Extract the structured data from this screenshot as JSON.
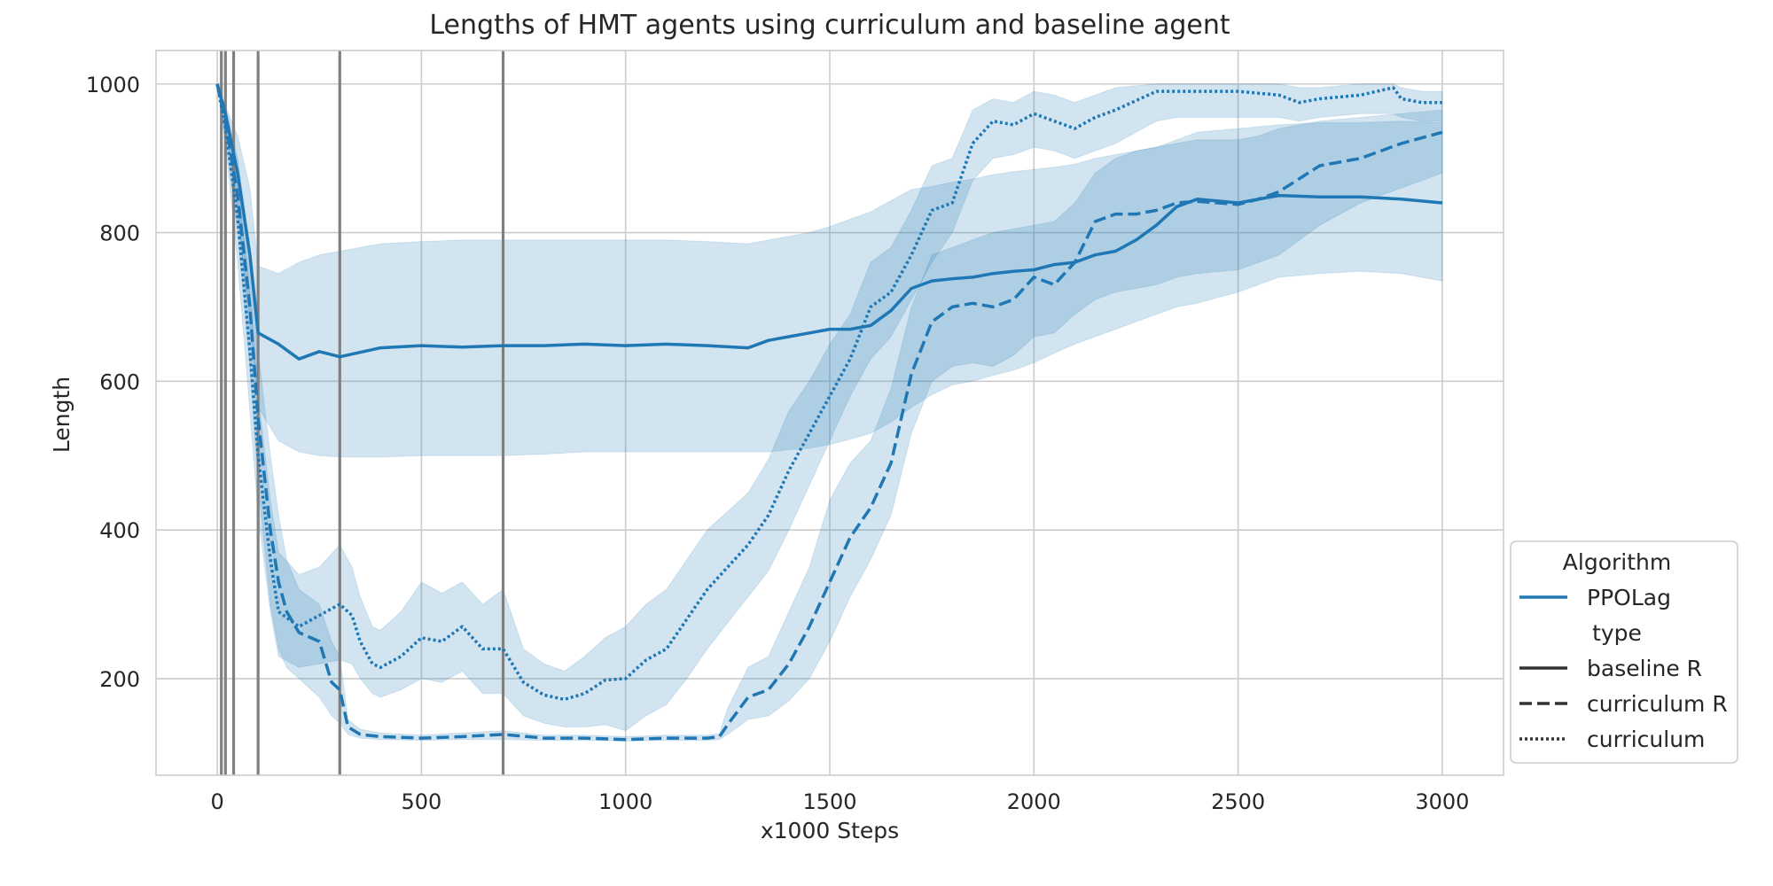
{
  "chart_data": {
    "type": "line",
    "title": "Lengths of HMT agents using curriculum and baseline agent",
    "xlabel": "x1000 Steps",
    "ylabel": "Length",
    "xlim": [
      -150,
      3150
    ],
    "ylim": [
      70,
      1045
    ],
    "xticks": [
      0,
      500,
      1000,
      1500,
      2000,
      2500,
      3000
    ],
    "yticks": [
      200,
      400,
      600,
      800,
      1000
    ],
    "grid": true,
    "colors": {
      "line": "#1f77b4",
      "band": "#1f77b4",
      "vline": "#808080",
      "legend_style_line": "#333333"
    },
    "vertical_lines": [
      10,
      20,
      40,
      100,
      300,
      700
    ],
    "legend": {
      "placement": "lower-right-outside",
      "entries": [
        {
          "kind": "header",
          "text": "Algorithm"
        },
        {
          "kind": "series",
          "text": "PPOLag",
          "dash": "solid",
          "colored": true
        },
        {
          "kind": "header",
          "text": "type"
        },
        {
          "kind": "series",
          "text": "baseline R",
          "dash": "solid",
          "colored": false
        },
        {
          "kind": "series",
          "text": "curriculum R",
          "dash": "dashed",
          "colored": false
        },
        {
          "kind": "series",
          "text": "curriculum",
          "dash": "dotted",
          "colored": false
        }
      ]
    },
    "series": [
      {
        "name": "baseline R",
        "dash": "solid",
        "x": [
          0,
          20,
          50,
          80,
          100,
          150,
          200,
          250,
          300,
          400,
          500,
          600,
          700,
          800,
          900,
          1000,
          1100,
          1200,
          1300,
          1350,
          1400,
          1450,
          1500,
          1550,
          1600,
          1650,
          1700,
          1750,
          1800,
          1850,
          1900,
          1950,
          2000,
          2050,
          2100,
          2150,
          2200,
          2250,
          2300,
          2350,
          2400,
          2500,
          2600,
          2700,
          2800,
          2900,
          3000
        ],
        "y": [
          1000,
          960,
          880,
          770,
          665,
          650,
          630,
          640,
          633,
          645,
          648,
          646,
          648,
          648,
          650,
          648,
          650,
          648,
          645,
          655,
          660,
          665,
          670,
          670,
          675,
          695,
          725,
          735,
          738,
          740,
          745,
          748,
          750,
          757,
          760,
          770,
          775,
          790,
          810,
          835,
          845,
          840,
          850,
          848,
          848,
          845,
          840
        ],
        "lower": [
          1000,
          950,
          820,
          680,
          565,
          520,
          505,
          500,
          498,
          498,
          500,
          500,
          500,
          502,
          505,
          505,
          505,
          505,
          505,
          505,
          508,
          510,
          515,
          522,
          530,
          545,
          565,
          582,
          595,
          600,
          608,
          615,
          625,
          638,
          650,
          660,
          670,
          680,
          690,
          700,
          705,
          720,
          740,
          745,
          748,
          745,
          735
        ],
        "upper": [
          1000,
          970,
          930,
          860,
          755,
          745,
          760,
          770,
          775,
          785,
          788,
          790,
          790,
          790,
          790,
          790,
          790,
          788,
          785,
          790,
          795,
          800,
          808,
          818,
          828,
          843,
          858,
          862,
          868,
          872,
          878,
          882,
          885,
          888,
          892,
          900,
          905,
          910,
          915,
          925,
          935,
          940,
          945,
          948,
          948,
          950,
          948
        ]
      },
      {
        "name": "curriculum R",
        "dash": "dashed",
        "x": [
          0,
          20,
          50,
          80,
          100,
          130,
          150,
          170,
          200,
          250,
          280,
          300,
          320,
          350,
          400,
          500,
          600,
          700,
          800,
          900,
          1000,
          1100,
          1200,
          1230,
          1250,
          1300,
          1350,
          1400,
          1450,
          1500,
          1550,
          1600,
          1650,
          1700,
          1750,
          1800,
          1850,
          1900,
          1950,
          2000,
          2050,
          2100,
          2150,
          2200,
          2250,
          2300,
          2350,
          2400,
          2500,
          2550,
          2600,
          2700,
          2800,
          2900,
          3000
        ],
        "y": [
          1000,
          950,
          850,
          700,
          550,
          400,
          330,
          290,
          262,
          250,
          195,
          185,
          135,
          125,
          122,
          120,
          122,
          125,
          120,
          120,
          118,
          120,
          120,
          122,
          138,
          175,
          185,
          220,
          270,
          330,
          390,
          430,
          490,
          610,
          680,
          700,
          705,
          700,
          710,
          740,
          730,
          760,
          815,
          825,
          825,
          830,
          840,
          842,
          838,
          845,
          855,
          890,
          900,
          920,
          935
        ],
        "lower": [
          1000,
          930,
          800,
          620,
          460,
          300,
          240,
          215,
          200,
          175,
          150,
          140,
          125,
          120,
          118,
          117,
          118,
          118,
          117,
          117,
          116,
          117,
          117,
          118,
          125,
          145,
          150,
          170,
          200,
          250,
          310,
          360,
          420,
          530,
          600,
          620,
          625,
          620,
          635,
          660,
          665,
          690,
          710,
          720,
          725,
          730,
          740,
          745,
          750,
          760,
          770,
          810,
          840,
          860,
          880
        ],
        "upper": [
          1000,
          970,
          900,
          780,
          640,
          500,
          420,
          360,
          320,
          300,
          250,
          230,
          145,
          132,
          127,
          124,
          127,
          130,
          124,
          124,
          122,
          124,
          124,
          126,
          160,
          215,
          230,
          290,
          350,
          440,
          490,
          520,
          590,
          700,
          770,
          780,
          790,
          800,
          805,
          810,
          815,
          840,
          880,
          900,
          910,
          915,
          920,
          925,
          925,
          930,
          940,
          950,
          955,
          960,
          965
        ]
      },
      {
        "name": "curriculum",
        "dash": "dotted",
        "x": [
          0,
          20,
          50,
          80,
          100,
          130,
          150,
          200,
          250,
          300,
          330,
          350,
          380,
          400,
          450,
          500,
          550,
          600,
          650,
          700,
          750,
          800,
          850,
          900,
          950,
          1000,
          1050,
          1100,
          1150,
          1200,
          1250,
          1300,
          1350,
          1400,
          1450,
          1500,
          1550,
          1600,
          1650,
          1700,
          1750,
          1800,
          1850,
          1900,
          1950,
          2000,
          2050,
          2100,
          2150,
          2200,
          2300,
          2350,
          2400,
          2500,
          2600,
          2650,
          2700,
          2800,
          2880,
          2900,
          2950,
          3000
        ],
        "y": [
          1000,
          940,
          820,
          640,
          500,
          360,
          290,
          270,
          285,
          300,
          285,
          250,
          220,
          215,
          230,
          255,
          250,
          270,
          240,
          240,
          195,
          178,
          172,
          180,
          198,
          200,
          225,
          240,
          280,
          320,
          350,
          380,
          420,
          480,
          530,
          580,
          630,
          700,
          720,
          770,
          830,
          840,
          920,
          950,
          945,
          960,
          950,
          940,
          955,
          965,
          990,
          990,
          990,
          990,
          985,
          975,
          980,
          985,
          995,
          980,
          975,
          975
        ],
        "lower": [
          1000,
          920,
          760,
          560,
          420,
          290,
          230,
          215,
          220,
          225,
          220,
          200,
          180,
          175,
          185,
          200,
          195,
          210,
          180,
          180,
          150,
          140,
          135,
          135,
          138,
          130,
          150,
          165,
          200,
          240,
          275,
          310,
          345,
          400,
          460,
          520,
          580,
          630,
          660,
          710,
          760,
          800,
          870,
          900,
          905,
          915,
          910,
          900,
          910,
          920,
          950,
          955,
          955,
          955,
          955,
          950,
          955,
          960,
          960,
          955,
          950,
          950
        ],
        "upper": [
          1000,
          960,
          870,
          720,
          580,
          440,
          370,
          340,
          350,
          380,
          350,
          310,
          270,
          265,
          290,
          330,
          315,
          330,
          300,
          320,
          240,
          220,
          210,
          230,
          255,
          270,
          300,
          320,
          360,
          400,
          425,
          450,
          495,
          560,
          600,
          650,
          690,
          760,
          780,
          830,
          890,
          900,
          965,
          980,
          975,
          990,
          985,
          975,
          985,
          995,
          1000,
          1000,
          1000,
          1000,
          1000,
          995,
          995,
          1000,
          1000,
          995,
          990,
          990
        ]
      }
    ]
  }
}
